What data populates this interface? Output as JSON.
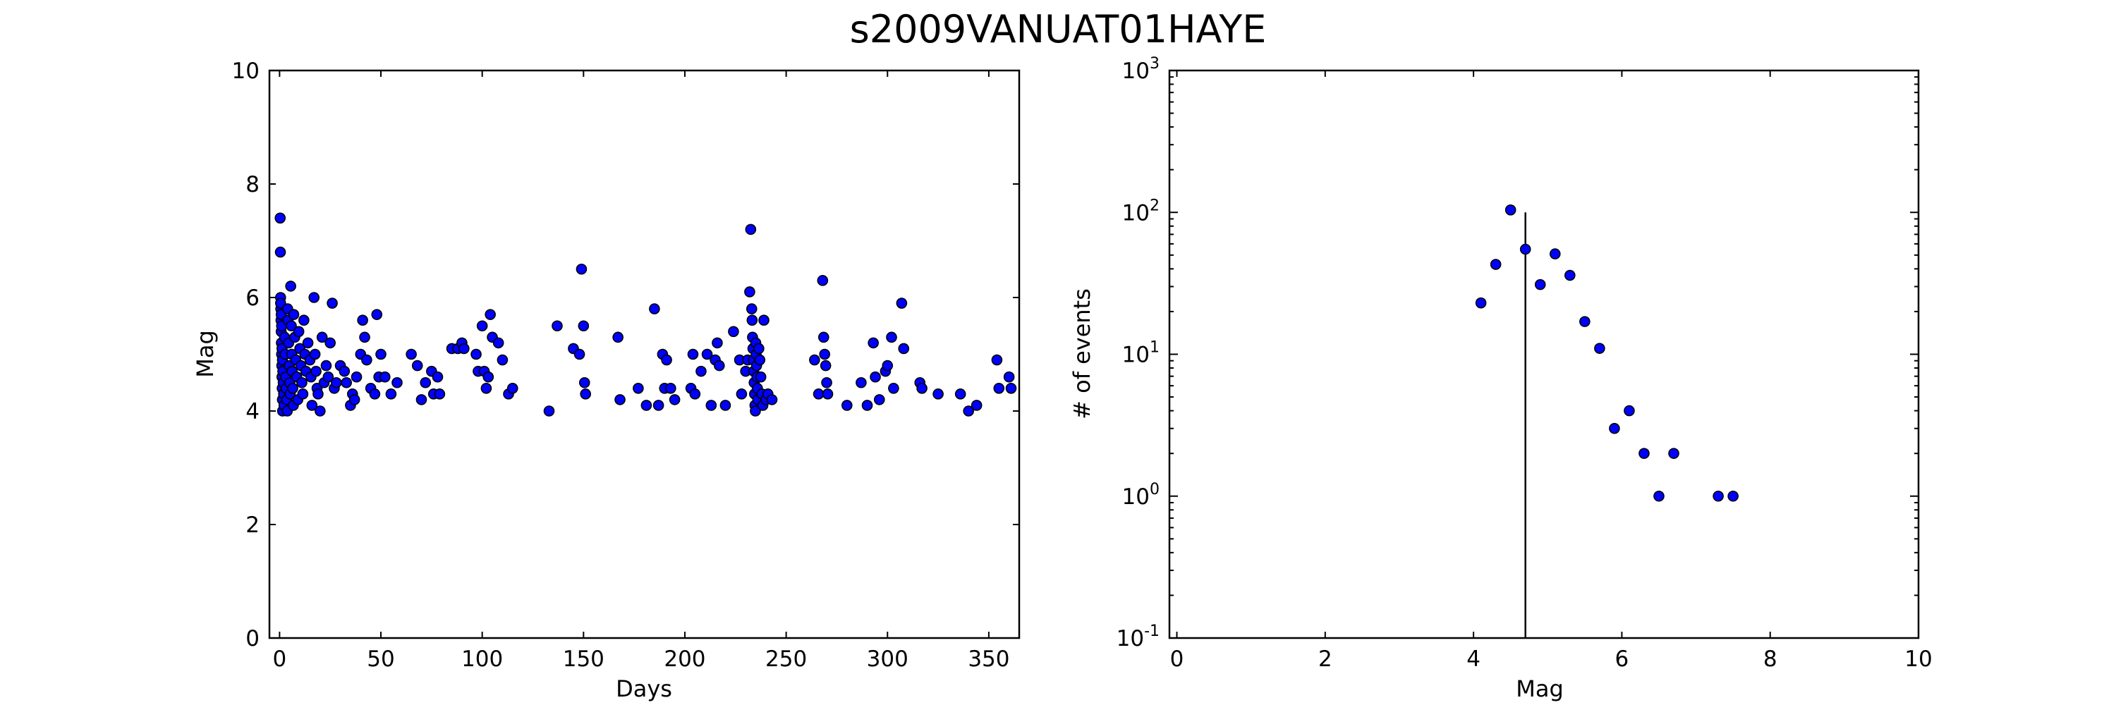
{
  "figure": {
    "title": "s2009VANUAT01HAYE"
  },
  "chart_data": [
    {
      "type": "scatter",
      "xlabel": "Days",
      "ylabel": "Mag",
      "xlim": [
        -5,
        365
      ],
      "ylim": [
        0,
        10
      ],
      "xticks": [
        "0",
        "50",
        "100",
        "150",
        "200",
        "250",
        "300",
        "350"
      ],
      "xtick_values": [
        0,
        50,
        100,
        150,
        200,
        250,
        300,
        350
      ],
      "yticks": [
        "0",
        "2",
        "4",
        "6",
        "8",
        "10"
      ],
      "ytick_values": [
        0,
        2,
        4,
        6,
        8,
        10
      ],
      "marker_color": "#0000ff",
      "points": [
        [
          0.3,
          7.4
        ],
        [
          0.4,
          6.8
        ],
        [
          0.5,
          6.0
        ],
        [
          0.6,
          5.8
        ],
        [
          0.7,
          5.6
        ],
        [
          0.8,
          5.4
        ],
        [
          0.9,
          5.2
        ],
        [
          1.0,
          5.0
        ],
        [
          1.1,
          4.8
        ],
        [
          1.2,
          4.6
        ],
        [
          1.3,
          4.4
        ],
        [
          1.4,
          4.2
        ],
        [
          1.5,
          4.0
        ],
        [
          0.5,
          5.9
        ],
        [
          0.8,
          5.7
        ],
        [
          1.0,
          5.5
        ],
        [
          1.2,
          5.1
        ],
        [
          1.4,
          4.9
        ],
        [
          1.6,
          4.7
        ],
        [
          1.8,
          4.5
        ],
        [
          2.0,
          4.3
        ],
        [
          2.2,
          4.1
        ],
        [
          2.5,
          5.3
        ],
        [
          2.8,
          5.0
        ],
        [
          3.0,
          4.6
        ],
        [
          3.2,
          4.4
        ],
        [
          3.5,
          4.2
        ],
        [
          3.8,
          4.0
        ],
        [
          4.0,
          5.8
        ],
        [
          4.2,
          5.6
        ],
        [
          4.5,
          5.2
        ],
        [
          4.8,
          4.8
        ],
        [
          5.0,
          4.5
        ],
        [
          5.2,
          4.3
        ],
        [
          5.5,
          6.2
        ],
        [
          5.8,
          5.5
        ],
        [
          6.0,
          5.0
        ],
        [
          6.2,
          4.7
        ],
        [
          6.5,
          4.4
        ],
        [
          6.8,
          4.1
        ],
        [
          7.0,
          5.7
        ],
        [
          7.5,
          5.3
        ],
        [
          8.0,
          4.9
        ],
        [
          8.5,
          4.6
        ],
        [
          9.0,
          4.2
        ],
        [
          9.5,
          5.4
        ],
        [
          10.0,
          5.1
        ],
        [
          10.5,
          4.8
        ],
        [
          11.0,
          4.5
        ],
        [
          11.5,
          4.3
        ],
        [
          12.0,
          5.6
        ],
        [
          12.5,
          5.0
        ],
        [
          13.0,
          4.7
        ],
        [
          14.0,
          5.2
        ],
        [
          15.0,
          4.9
        ],
        [
          15.5,
          4.6
        ],
        [
          16.0,
          4.1
        ],
        [
          17.0,
          6.0
        ],
        [
          17.5,
          5.0
        ],
        [
          18.0,
          4.7
        ],
        [
          18.5,
          4.4
        ],
        [
          19.0,
          4.3
        ],
        [
          20.0,
          4.0
        ],
        [
          21.0,
          5.3
        ],
        [
          22.0,
          4.5
        ],
        [
          23.0,
          4.8
        ],
        [
          24.0,
          4.6
        ],
        [
          25.0,
          5.2
        ],
        [
          26.0,
          5.9
        ],
        [
          27.0,
          4.4
        ],
        [
          28.0,
          4.5
        ],
        [
          30.0,
          4.8
        ],
        [
          32.0,
          4.7
        ],
        [
          33.0,
          4.5
        ],
        [
          35.0,
          4.1
        ],
        [
          36.0,
          4.3
        ],
        [
          37.0,
          4.2
        ],
        [
          38.0,
          4.6
        ],
        [
          40.0,
          5.0
        ],
        [
          41.0,
          5.6
        ],
        [
          42.0,
          5.3
        ],
        [
          43.0,
          4.9
        ],
        [
          45.0,
          4.4
        ],
        [
          47.0,
          4.3
        ],
        [
          48.0,
          5.7
        ],
        [
          49.0,
          4.6
        ],
        [
          50.0,
          5.0
        ],
        [
          52.0,
          4.6
        ],
        [
          55.0,
          4.3
        ],
        [
          58.0,
          4.5
        ],
        [
          65.0,
          5.0
        ],
        [
          68.0,
          4.8
        ],
        [
          70.0,
          4.2
        ],
        [
          72.0,
          4.5
        ],
        [
          75.0,
          4.7
        ],
        [
          76.0,
          4.3
        ],
        [
          78.0,
          4.6
        ],
        [
          79.0,
          4.3
        ],
        [
          85.0,
          5.1
        ],
        [
          88.0,
          5.1
        ],
        [
          90.0,
          5.2
        ],
        [
          91.0,
          5.1
        ],
        [
          97.0,
          5.0
        ],
        [
          98.0,
          4.7
        ],
        [
          100.0,
          5.5
        ],
        [
          101.0,
          4.7
        ],
        [
          102.0,
          4.4
        ],
        [
          103.0,
          4.6
        ],
        [
          104.0,
          5.7
        ],
        [
          105.0,
          5.3
        ],
        [
          108.0,
          5.2
        ],
        [
          110.0,
          4.9
        ],
        [
          113.0,
          4.3
        ],
        [
          115.0,
          4.4
        ],
        [
          133.0,
          4.0
        ],
        [
          137.0,
          5.5
        ],
        [
          145.0,
          5.1
        ],
        [
          148.0,
          5.0
        ],
        [
          149.0,
          6.5
        ],
        [
          150.0,
          5.5
        ],
        [
          150.5,
          4.5
        ],
        [
          151.0,
          4.3
        ],
        [
          167.0,
          5.3
        ],
        [
          168.0,
          4.2
        ],
        [
          177.0,
          4.4
        ],
        [
          181.0,
          4.1
        ],
        [
          185.0,
          5.8
        ],
        [
          187.0,
          4.1
        ],
        [
          189.0,
          5.0
        ],
        [
          190.0,
          4.4
        ],
        [
          191.0,
          4.9
        ],
        [
          193.0,
          4.4
        ],
        [
          195.0,
          4.2
        ],
        [
          203.0,
          4.4
        ],
        [
          204.0,
          5.0
        ],
        [
          205.0,
          4.3
        ],
        [
          208.0,
          4.7
        ],
        [
          211.0,
          5.0
        ],
        [
          213.0,
          4.1
        ],
        [
          215.0,
          4.9
        ],
        [
          216.0,
          5.2
        ],
        [
          217.0,
          4.8
        ],
        [
          220.0,
          4.1
        ],
        [
          224.0,
          5.4
        ],
        [
          227.0,
          4.9
        ],
        [
          228.0,
          4.3
        ],
        [
          230.0,
          4.7
        ],
        [
          231.0,
          4.9
        ],
        [
          232.0,
          6.1
        ],
        [
          232.5,
          7.2
        ],
        [
          233.0,
          5.8
        ],
        [
          233.2,
          5.6
        ],
        [
          233.4,
          5.3
        ],
        [
          233.6,
          5.1
        ],
        [
          233.8,
          4.9
        ],
        [
          234.0,
          4.7
        ],
        [
          234.2,
          4.5
        ],
        [
          234.4,
          4.3
        ],
        [
          234.6,
          4.1
        ],
        [
          234.8,
          4.0
        ],
        [
          235.0,
          5.2
        ],
        [
          235.2,
          5.0
        ],
        [
          235.4,
          4.8
        ],
        [
          235.6,
          4.6
        ],
        [
          235.8,
          4.4
        ],
        [
          236.0,
          4.2
        ],
        [
          236.5,
          5.1
        ],
        [
          237.0,
          4.9
        ],
        [
          237.5,
          4.6
        ],
        [
          238.0,
          4.3
        ],
        [
          238.5,
          4.1
        ],
        [
          239.0,
          5.6
        ],
        [
          240.0,
          4.2
        ],
        [
          241.0,
          4.3
        ],
        [
          243.0,
          4.2
        ],
        [
          264.0,
          4.9
        ],
        [
          266.0,
          4.3
        ],
        [
          268.0,
          6.3
        ],
        [
          268.5,
          5.3
        ],
        [
          269.0,
          5.0
        ],
        [
          269.5,
          4.8
        ],
        [
          270.0,
          4.5
        ],
        [
          270.5,
          4.3
        ],
        [
          280.0,
          4.1
        ],
        [
          287.0,
          4.5
        ],
        [
          290.0,
          4.1
        ],
        [
          293.0,
          5.2
        ],
        [
          294.0,
          4.6
        ],
        [
          296.0,
          4.2
        ],
        [
          299.0,
          4.7
        ],
        [
          300.0,
          4.8
        ],
        [
          302.0,
          5.3
        ],
        [
          303.0,
          4.4
        ],
        [
          307.0,
          5.9
        ],
        [
          308.0,
          5.1
        ],
        [
          316.0,
          4.5
        ],
        [
          317.0,
          4.4
        ],
        [
          325.0,
          4.3
        ],
        [
          336.0,
          4.3
        ],
        [
          340.0,
          4.0
        ],
        [
          344.0,
          4.1
        ],
        [
          354.0,
          4.9
        ],
        [
          355.0,
          4.4
        ],
        [
          360.0,
          4.6
        ],
        [
          361.0,
          4.4
        ]
      ]
    },
    {
      "type": "scatter",
      "xlabel": "Mag",
      "ylabel": "# of events",
      "xscale": "linear",
      "yscale": "log",
      "xlim": [
        -0.1,
        10
      ],
      "ylim": [
        0.1,
        1000
      ],
      "xticks": [
        "0",
        "2",
        "4",
        "6",
        "8",
        "10"
      ],
      "xtick_values": [
        0,
        2,
        4,
        6,
        8,
        10
      ],
      "yticks": [
        {
          "base": "10",
          "exp": "-1"
        },
        {
          "base": "10",
          "exp": "0"
        },
        {
          "base": "10",
          "exp": "1"
        },
        {
          "base": "10",
          "exp": "2"
        },
        {
          "base": "10",
          "exp": "3"
        }
      ],
      "ytick_values": [
        0.1,
        1,
        10,
        100,
        1000
      ],
      "vline": {
        "x": 4.7,
        "y_from": 0.1,
        "y_to": 100
      },
      "marker_color": "#0000ff",
      "points": [
        [
          4.1,
          23
        ],
        [
          4.3,
          43
        ],
        [
          4.5,
          104
        ],
        [
          4.7,
          55
        ],
        [
          4.9,
          31
        ],
        [
          5.1,
          51
        ],
        [
          5.3,
          36
        ],
        [
          5.5,
          17
        ],
        [
          5.7,
          11
        ],
        [
          5.9,
          3
        ],
        [
          6.1,
          4
        ],
        [
          6.3,
          2
        ],
        [
          6.5,
          1
        ],
        [
          6.7,
          2
        ],
        [
          7.3,
          1
        ],
        [
          7.5,
          1
        ]
      ]
    }
  ]
}
